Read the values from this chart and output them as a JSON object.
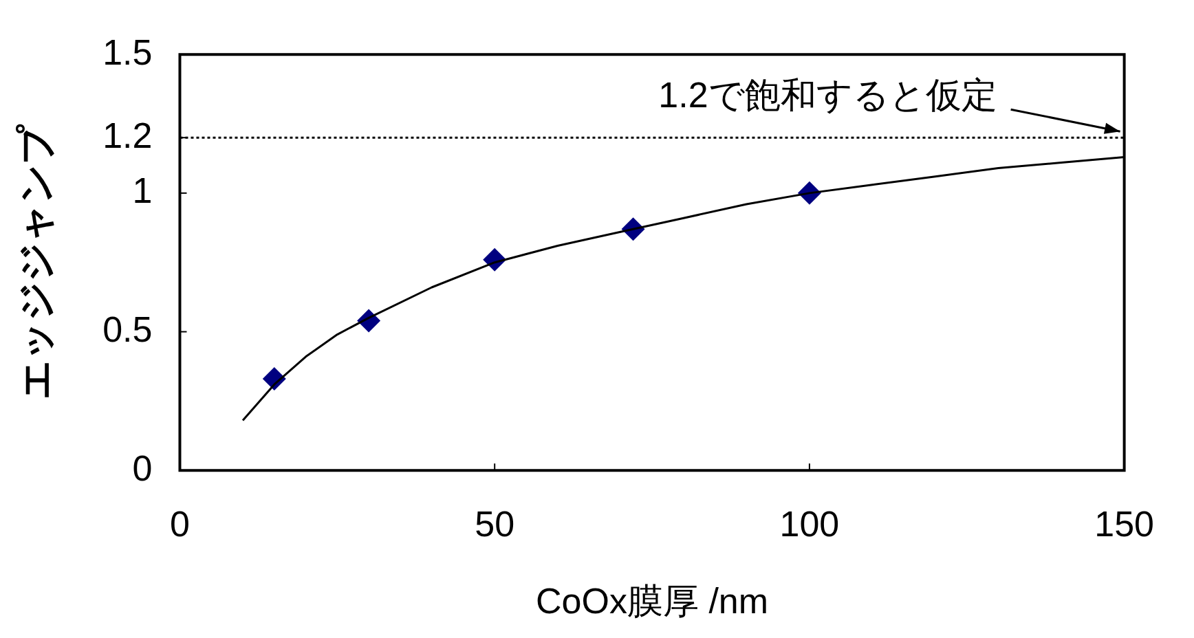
{
  "chart_data": {
    "type": "line",
    "xlabel": "CoOx膜厚 /nm",
    "ylabel": "エッジジャンプ",
    "xlim": [
      0,
      150
    ],
    "xticks": [
      0,
      50,
      100,
      150
    ],
    "ylim": [
      0,
      1.5
    ],
    "yticks": [
      0,
      0.5,
      1,
      1.2,
      1.5
    ],
    "grid": false,
    "legend": false,
    "marker": "diamond",
    "series": [
      {
        "color": "#000000",
        "marker": "none",
        "line_style": "solid",
        "x": [
          10,
          15,
          20,
          25,
          30,
          40,
          50,
          60,
          70,
          80,
          90,
          100,
          110,
          120,
          130,
          140,
          150
        ],
        "values": [
          0.18,
          0.31,
          0.41,
          0.49,
          0.55,
          0.66,
          0.75,
          0.81,
          0.86,
          0.91,
          0.96,
          1.0,
          1.03,
          1.06,
          1.09,
          1.11,
          1.13
        ]
      },
      {
        "type": "scatter",
        "color": "#000080",
        "x": [
          15,
          30,
          50,
          72,
          100
        ],
        "values": [
          0.33,
          0.54,
          0.76,
          0.87,
          1.0
        ]
      }
    ],
    "ref_lines": [
      {
        "axis": "y",
        "value": 1.2,
        "color": "#000000",
        "line_style": "dotted"
      }
    ],
    "annotations": [
      "1.2で飽和すると仮定"
    ]
  }
}
